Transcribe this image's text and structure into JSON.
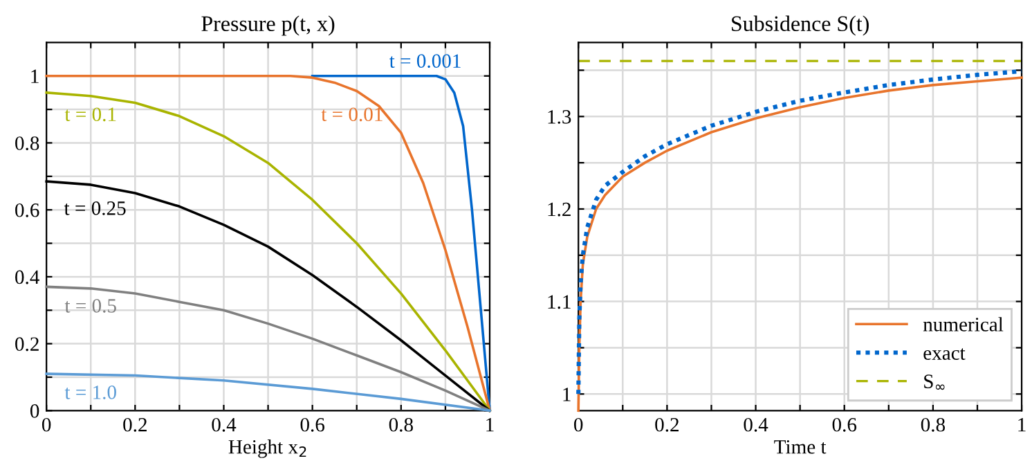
{
  "chart_data": [
    {
      "type": "line",
      "title": "Pressure p(t, x)",
      "xlabel": "Height x$_{2}$",
      "xlim": [
        0,
        1
      ],
      "ylim": [
        0,
        1.1
      ],
      "xticks": [
        0,
        {
          "value": 0.1,
          "label": null
        },
        0.2,
        {
          "value": 0.3,
          "label": null
        },
        0.4,
        {
          "value": 0.5,
          "label": null
        },
        0.6,
        {
          "value": 0.7,
          "label": null
        },
        0.8,
        {
          "value": 0.9,
          "label": null
        },
        1
      ],
      "yticks": [
        0,
        {
          "value": 0.1,
          "label": null
        },
        0.2,
        {
          "value": 0.3,
          "label": null
        },
        0.4,
        {
          "value": 0.5,
          "label": null
        },
        0.6,
        {
          "value": 0.7,
          "label": null
        },
        0.8,
        {
          "value": 0.9,
          "label": null
        },
        1
      ],
      "grid": true,
      "legend": false,
      "series": [
        {
          "color": "#0066cc",
          "x": [
            0.6,
            0.8,
            0.88,
            0.9,
            0.92,
            0.94,
            0.96,
            0.98,
            1
          ],
          "values": [
            1,
            1,
            1,
            0.99,
            0.95,
            0.85,
            0.6,
            0.3,
            0
          ]
        },
        {
          "color": "#e8742c",
          "x": [
            0,
            0.2,
            0.4,
            0.55,
            0.6,
            0.65,
            0.7,
            0.75,
            0.8,
            0.85,
            0.9,
            0.95,
            1
          ],
          "values": [
            1,
            1,
            1,
            1,
            0.995,
            0.98,
            0.955,
            0.91,
            0.83,
            0.68,
            0.48,
            0.25,
            0
          ]
        },
        {
          "color": "#a9b400",
          "x": [
            0,
            0.1,
            0.2,
            0.3,
            0.4,
            0.5,
            0.6,
            0.7,
            0.8,
            0.9,
            1
          ],
          "values": [
            0.95,
            0.94,
            0.92,
            0.88,
            0.82,
            0.74,
            0.63,
            0.5,
            0.35,
            0.18,
            0
          ]
        },
        {
          "color": "#000000",
          "x": [
            0,
            0.1,
            0.2,
            0.3,
            0.4,
            0.5,
            0.6,
            0.7,
            0.8,
            0.9,
            1
          ],
          "values": [
            0.685,
            0.675,
            0.65,
            0.61,
            0.555,
            0.49,
            0.405,
            0.31,
            0.21,
            0.105,
            0
          ]
        },
        {
          "color": "#808080",
          "x": [
            0,
            0.1,
            0.2,
            0.3,
            0.4,
            0.5,
            0.6,
            0.7,
            0.8,
            0.9,
            1
          ],
          "values": [
            0.37,
            0.365,
            0.35,
            0.325,
            0.3,
            0.26,
            0.215,
            0.165,
            0.115,
            0.06,
            0
          ]
        },
        {
          "color": "#5b9bd5",
          "x": [
            0,
            0.2,
            0.4,
            0.6,
            0.8,
            1
          ],
          "values": [
            0.11,
            0.105,
            0.09,
            0.065,
            0.035,
            0
          ]
        }
      ],
      "annotations": [
        "t = 0.001",
        "t = 0.01",
        "t = 0.1",
        "t = 0.25",
        "t = 0.5",
        "t = 1.0"
      ]
    },
    {
      "type": "line",
      "title": "Subsidence S(t)",
      "xlabel": "Time t",
      "xlim": [
        0,
        1
      ],
      "ylim": [
        0.982,
        1.38
      ],
      "xticks": [
        0,
        {
          "value": 0.1,
          "label": null
        },
        0.2,
        {
          "value": 0.3,
          "label": null
        },
        0.4,
        {
          "value": 0.5,
          "label": null
        },
        0.6,
        {
          "value": 0.7,
          "label": null
        },
        0.8,
        {
          "value": 0.9,
          "label": null
        },
        1
      ],
      "yticks": [
        1,
        {
          "value": 1.05,
          "label": null
        },
        1.1,
        {
          "value": 1.15,
          "label": null
        },
        1.2,
        {
          "value": 1.25,
          "label": null
        },
        1.3,
        {
          "value": 1.35,
          "label": null
        }
      ],
      "grid": true,
      "legend": "bottom right",
      "series": [
        {
          "name": "numerical",
          "color": "#e8742c",
          "line_style": "solid",
          "x": [
            0,
            0.002,
            0.005,
            0.01,
            0.02,
            0.04,
            0.06,
            0.1,
            0.15,
            0.2,
            0.3,
            0.4,
            0.5,
            0.6,
            0.7,
            0.8,
            0.9,
            1
          ],
          "values": [
            0.982,
            1.05,
            1.1,
            1.14,
            1.17,
            1.2,
            1.215,
            1.235,
            1.25,
            1.263,
            1.283,
            1.298,
            1.31,
            1.32,
            1.328,
            1.334,
            1.338,
            1.342
          ]
        },
        {
          "name": "exact",
          "color": "#0066cc",
          "line_style": "dotted",
          "x": [
            0,
            0.002,
            0.005,
            0.01,
            0.02,
            0.04,
            0.06,
            0.1,
            0.15,
            0.2,
            0.3,
            0.4,
            0.5,
            0.6,
            0.7,
            0.8,
            0.9,
            1
          ],
          "values": [
            1.0,
            1.08,
            1.12,
            1.15,
            1.18,
            1.21,
            1.225,
            1.24,
            1.257,
            1.27,
            1.29,
            1.305,
            1.317,
            1.326,
            1.334,
            1.34,
            1.345,
            1.349
          ]
        }
      ],
      "ref_lines": [
        {
          "axis": "y",
          "value": 1.36,
          "label": "S$_{∞}$",
          "color": "#a9b400",
          "line_style": "dashed"
        }
      ]
    }
  ]
}
